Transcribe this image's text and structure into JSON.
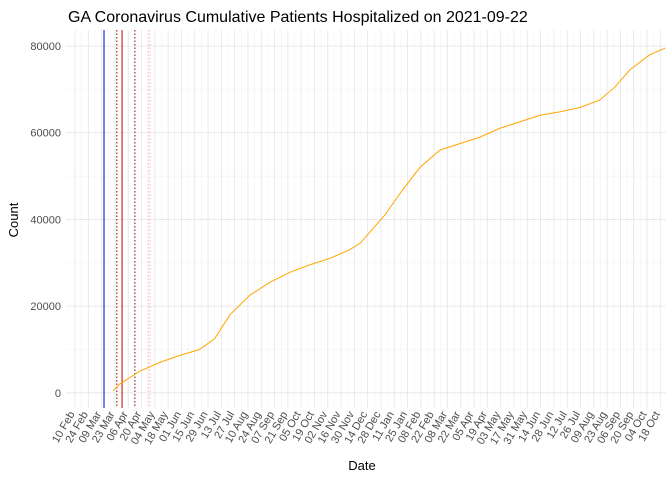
{
  "chart_data": {
    "type": "line",
    "title": "GA Coronavirus Cumulative Patients Hospitalized on 2021-09-22",
    "x_label": "Date",
    "y_label": "Count",
    "xlim": [
      -9.5,
      622
    ],
    "ylim": [
      -3500,
      83700
    ],
    "xticks": [
      {
        "value": 0,
        "label": "10 Feb"
      },
      {
        "value": 14,
        "label": "24 Feb"
      },
      {
        "value": 28,
        "label": "09 Mar"
      },
      {
        "value": 42,
        "label": "23 Mar"
      },
      {
        "value": 56,
        "label": "06 Apr"
      },
      {
        "value": 70,
        "label": "20 Apr"
      },
      {
        "value": 84,
        "label": "04 May"
      },
      {
        "value": 98,
        "label": "18 May"
      },
      {
        "value": 112,
        "label": "01 Jun"
      },
      {
        "value": 126,
        "label": "15 Jun"
      },
      {
        "value": 140,
        "label": "29 Jun"
      },
      {
        "value": 154,
        "label": "13 Jul"
      },
      {
        "value": 168,
        "label": "27 Jul"
      },
      {
        "value": 182,
        "label": "10 Aug"
      },
      {
        "value": 196,
        "label": "24 Aug"
      },
      {
        "value": 210,
        "label": "07 Sep"
      },
      {
        "value": 224,
        "label": "21 Sep"
      },
      {
        "value": 238,
        "label": "05 Oct"
      },
      {
        "value": 252,
        "label": "19 Oct"
      },
      {
        "value": 266,
        "label": "02 Nov"
      },
      {
        "value": 280,
        "label": "16 Nov"
      },
      {
        "value": 294,
        "label": "30 Nov"
      },
      {
        "value": 308,
        "label": "14 Dec"
      },
      {
        "value": 322,
        "label": "28 Dec"
      },
      {
        "value": 336,
        "label": "11 Jan"
      },
      {
        "value": 350,
        "label": "25 Jan"
      },
      {
        "value": 364,
        "label": "08 Feb"
      },
      {
        "value": 378,
        "label": "22 Feb"
      },
      {
        "value": 392,
        "label": "08 Mar"
      },
      {
        "value": 406,
        "label": "22 Mar"
      },
      {
        "value": 420,
        "label": "05 Apr"
      },
      {
        "value": 434,
        "label": "19 Apr"
      },
      {
        "value": 448,
        "label": "03 May"
      },
      {
        "value": 462,
        "label": "17 May"
      },
      {
        "value": 476,
        "label": "31 May"
      },
      {
        "value": 490,
        "label": "14 Jun"
      },
      {
        "value": 504,
        "label": "28 Jun"
      },
      {
        "value": 518,
        "label": "12 Jul"
      },
      {
        "value": 532,
        "label": "26 Jul"
      },
      {
        "value": 546,
        "label": "09 Aug"
      },
      {
        "value": 560,
        "label": "23 Aug"
      },
      {
        "value": 574,
        "label": "06 Sep"
      },
      {
        "value": 588,
        "label": "20 Sep"
      },
      {
        "value": 602,
        "label": "04 Oct"
      },
      {
        "value": 616,
        "label": "18 Oct"
      }
    ],
    "yticks": [
      0,
      20000,
      40000,
      60000,
      80000
    ],
    "grid": true,
    "reference_lines": [
      {
        "x": 30.5,
        "color": "#0000cc",
        "style": "solid"
      },
      {
        "x": 44,
        "color": "#8b0000",
        "style": "dotted"
      },
      {
        "x": 49.5,
        "color": "#cc0000",
        "style": "solid"
      },
      {
        "x": 63,
        "color": "#8b0000",
        "style": "dotted"
      },
      {
        "x": 77,
        "color": "#ffb6c1",
        "style": "dotted"
      },
      {
        "x": 79,
        "color": "#ffb6c1",
        "style": "dotted"
      }
    ],
    "series": [
      {
        "color": "#ffa500",
        "x": [
          40,
          47,
          68,
          89,
          110,
          131,
          147,
          163,
          184,
          205,
          226,
          247,
          268,
          289,
          300,
          316,
          326,
          342,
          363,
          384,
          405,
          426,
          447,
          468,
          489,
          510,
          531,
          552,
          568,
          584,
          605,
          621
        ],
        "values": [
          500,
          2000,
          5000,
          7000,
          8600,
          10000,
          12500,
          18000,
          22500,
          25500,
          27800,
          29500,
          31000,
          33000,
          34500,
          38500,
          41000,
          46000,
          52000,
          56000,
          57500,
          59000,
          61000,
          62500,
          64000,
          64800,
          65800,
          67500,
          70500,
          74500,
          78000,
          79500
        ]
      }
    ]
  }
}
